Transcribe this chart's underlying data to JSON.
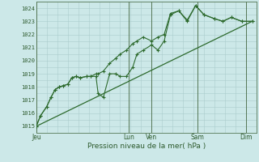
{
  "bg_color": "#cce8e8",
  "grid_color": "#aacccc",
  "line_color": "#2d6a2d",
  "marker_color": "#2d6a2d",
  "ylabel_min": 1015,
  "ylabel_max": 1024,
  "xlabel": "Pression niveau de la mer( hPa )",
  "day_labels": [
    "Jeu",
    "Lun",
    "Ven",
    "Sam",
    "Dim"
  ],
  "day_positions": [
    0.0,
    0.44,
    0.55,
    0.77,
    1.0
  ],
  "xlim": [
    0.0,
    1.05
  ],
  "series1_x": [
    0.0,
    0.02,
    0.05,
    0.07,
    0.09,
    0.11,
    0.13,
    0.15,
    0.17,
    0.19,
    0.21,
    0.24,
    0.26,
    0.285,
    0.295,
    0.32,
    0.35,
    0.38,
    0.4,
    0.43,
    0.46,
    0.48,
    0.51,
    0.55,
    0.58,
    0.61,
    0.64,
    0.68,
    0.72,
    0.76,
    0.8,
    0.85,
    0.89,
    0.93,
    0.98,
    1.03
  ],
  "series1_y": [
    1015.0,
    1015.8,
    1016.5,
    1017.2,
    1017.8,
    1018.0,
    1018.1,
    1018.2,
    1018.7,
    1018.8,
    1018.7,
    1018.8,
    1018.8,
    1018.8,
    1017.5,
    1017.2,
    1019.0,
    1019.0,
    1018.8,
    1018.8,
    1019.5,
    1020.5,
    1020.8,
    1021.2,
    1020.8,
    1021.5,
    1023.5,
    1023.8,
    1023.0,
    1024.2,
    1023.5,
    1023.2,
    1023.0,
    1023.3,
    1023.0,
    1023.0
  ],
  "series2_x": [
    0.0,
    0.02,
    0.05,
    0.07,
    0.09,
    0.11,
    0.13,
    0.15,
    0.17,
    0.19,
    0.21,
    0.24,
    0.26,
    0.285,
    0.295,
    0.32,
    0.35,
    0.38,
    0.4,
    0.43,
    0.46,
    0.48,
    0.51,
    0.55,
    0.58,
    0.61,
    0.64,
    0.68,
    0.72,
    0.76,
    0.8,
    0.85,
    0.89,
    0.93,
    0.98,
    1.03
  ],
  "series2_y": [
    1015.0,
    1015.8,
    1016.5,
    1017.2,
    1017.8,
    1018.0,
    1018.1,
    1018.2,
    1018.7,
    1018.8,
    1018.7,
    1018.8,
    1018.8,
    1019.0,
    1019.0,
    1019.2,
    1019.8,
    1020.2,
    1020.5,
    1020.8,
    1021.3,
    1021.5,
    1021.8,
    1021.5,
    1021.8,
    1022.0,
    1023.6,
    1023.8,
    1023.1,
    1024.2,
    1023.5,
    1023.2,
    1023.0,
    1023.3,
    1023.0,
    1023.0
  ],
  "trend_x": [
    0.0,
    1.03
  ],
  "trend_y": [
    1015.0,
    1023.0
  ]
}
